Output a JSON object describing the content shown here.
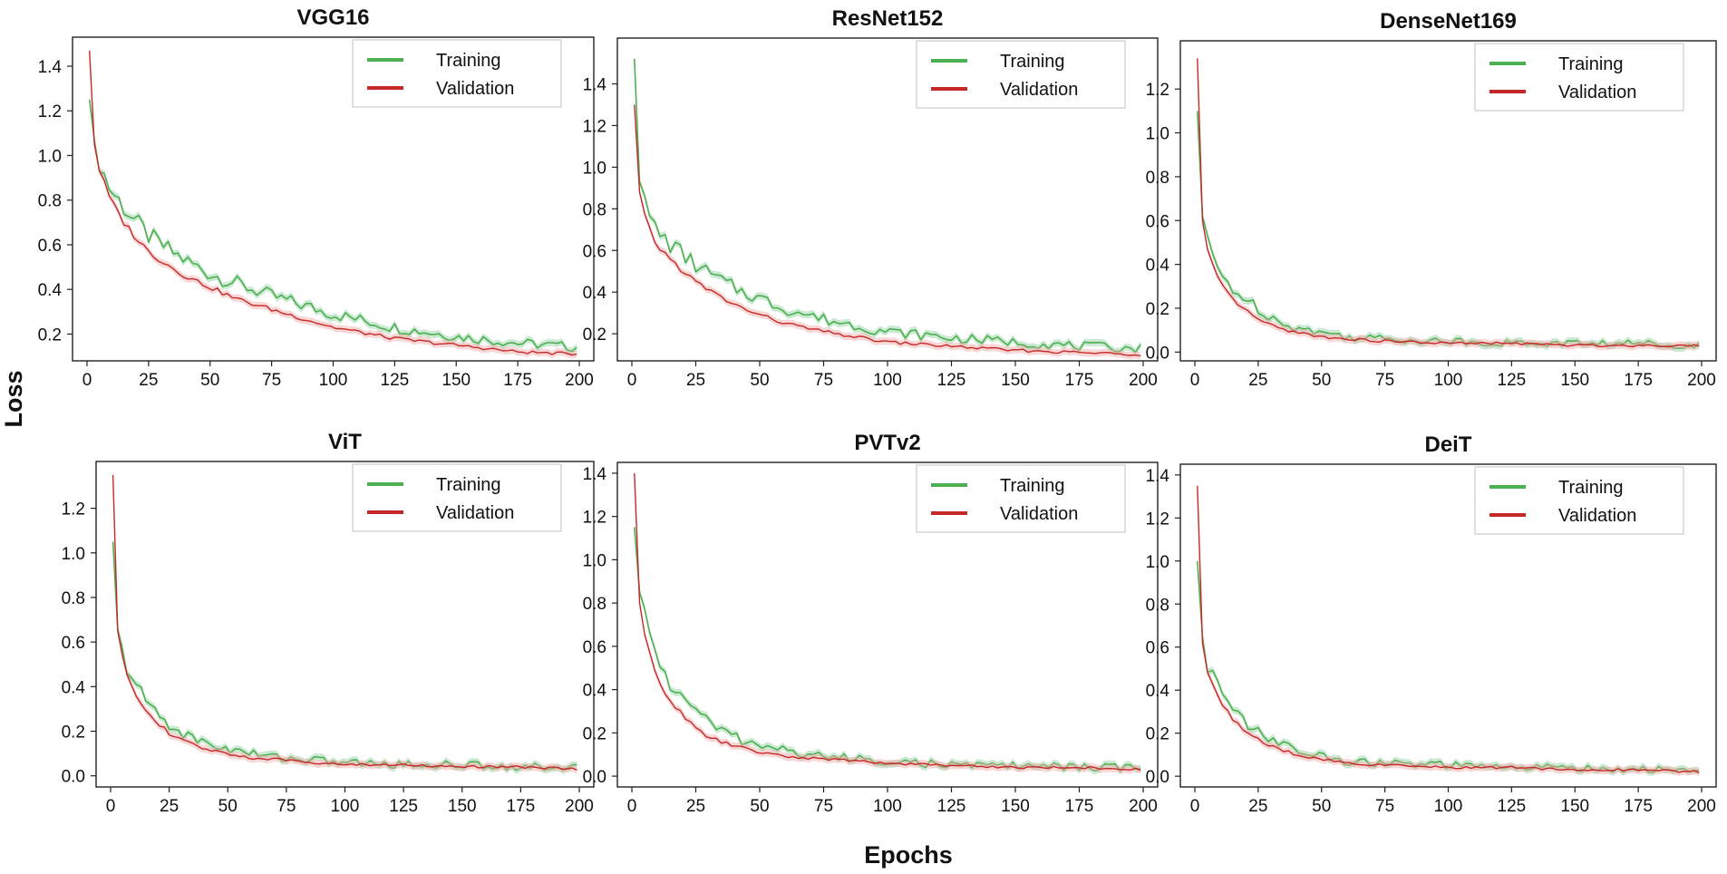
{
  "figure": {
    "xlabel": "Epochs",
    "ylabel": "Loss"
  },
  "colors": {
    "training": "#4caf50",
    "training_light": "#8fd19e",
    "validation": "#c62828",
    "validation_light": "#f4a7a7"
  },
  "chart_data": [
    {
      "type": "line",
      "title": "VGG16",
      "legend": [
        "Training",
        "Validation"
      ],
      "legend_position": "top-right",
      "xlim": [
        0,
        200
      ],
      "ylim": [
        0.08,
        1.53
      ],
      "xticks": [
        0,
        25,
        50,
        75,
        100,
        125,
        150,
        175,
        200
      ],
      "yticks": [
        0.2,
        0.4,
        0.6,
        0.8,
        1.0,
        1.2,
        1.4
      ],
      "x": [
        1,
        2,
        3,
        5,
        8,
        10,
        15,
        20,
        25,
        30,
        40,
        50,
        60,
        75,
        100,
        125,
        150,
        175,
        200
      ],
      "series": [
        {
          "name": "Training",
          "values": [
            1.25,
            1.15,
            1.07,
            0.98,
            0.88,
            0.84,
            0.77,
            0.7,
            0.64,
            0.6,
            0.53,
            0.47,
            0.43,
            0.37,
            0.29,
            0.23,
            0.19,
            0.16,
            0.14
          ]
        },
        {
          "name": "Validation",
          "values": [
            1.47,
            1.2,
            1.05,
            0.94,
            0.84,
            0.79,
            0.7,
            0.63,
            0.57,
            0.53,
            0.46,
            0.41,
            0.36,
            0.31,
            0.23,
            0.18,
            0.15,
            0.12,
            0.11
          ]
        }
      ]
    },
    {
      "type": "line",
      "title": "ResNet152",
      "legend": [
        "Training",
        "Validation"
      ],
      "legend_position": "top-right",
      "xlim": [
        0,
        200
      ],
      "ylim": [
        0.07,
        1.62
      ],
      "xticks": [
        0,
        25,
        50,
        75,
        100,
        125,
        150,
        175,
        200
      ],
      "yticks": [
        0.2,
        0.4,
        0.6,
        0.8,
        1.0,
        1.2,
        1.4
      ],
      "x": [
        1,
        2,
        3,
        5,
        8,
        10,
        15,
        20,
        25,
        30,
        40,
        50,
        60,
        75,
        100,
        125,
        150,
        175,
        200
      ],
      "series": [
        {
          "name": "Training",
          "values": [
            1.52,
            1.05,
            0.93,
            0.82,
            0.73,
            0.69,
            0.63,
            0.58,
            0.53,
            0.49,
            0.42,
            0.37,
            0.32,
            0.27,
            0.21,
            0.18,
            0.16,
            0.14,
            0.13
          ]
        },
        {
          "name": "Validation",
          "values": [
            1.3,
            1.0,
            0.88,
            0.76,
            0.67,
            0.62,
            0.56,
            0.5,
            0.45,
            0.41,
            0.34,
            0.29,
            0.25,
            0.21,
            0.16,
            0.14,
            0.12,
            0.11,
            0.1
          ]
        }
      ]
    },
    {
      "type": "line",
      "title": "DenseNet169",
      "legend": [
        "Training",
        "Validation"
      ],
      "legend_position": "top-right",
      "xlim": [
        0,
        200
      ],
      "ylim": [
        -0.04,
        1.42
      ],
      "xticks": [
        0,
        25,
        50,
        75,
        100,
        125,
        150,
        175,
        200
      ],
      "yticks": [
        0.0,
        0.2,
        0.4,
        0.6,
        0.8,
        1.0,
        1.2
      ],
      "x": [
        1,
        2,
        3,
        5,
        8,
        10,
        15,
        20,
        25,
        30,
        40,
        50,
        60,
        75,
        100,
        125,
        150,
        175,
        200
      ],
      "series": [
        {
          "name": "Training",
          "values": [
            1.1,
            0.8,
            0.62,
            0.5,
            0.4,
            0.36,
            0.29,
            0.24,
            0.2,
            0.16,
            0.11,
            0.09,
            0.07,
            0.06,
            0.05,
            0.04,
            0.04,
            0.04,
            0.03
          ]
        },
        {
          "name": "Validation",
          "values": [
            1.34,
            0.85,
            0.6,
            0.46,
            0.36,
            0.31,
            0.24,
            0.19,
            0.15,
            0.12,
            0.09,
            0.07,
            0.06,
            0.05,
            0.04,
            0.04,
            0.03,
            0.03,
            0.03
          ]
        }
      ]
    },
    {
      "type": "line",
      "title": "ViT",
      "legend": [
        "Training",
        "Validation"
      ],
      "legend_position": "top-right",
      "xlim": [
        0,
        200
      ],
      "ylim": [
        -0.05,
        1.41
      ],
      "xticks": [
        0,
        25,
        50,
        75,
        100,
        125,
        150,
        175,
        200
      ],
      "yticks": [
        0.0,
        0.2,
        0.4,
        0.6,
        0.8,
        1.0,
        1.2
      ],
      "x": [
        1,
        2,
        3,
        5,
        8,
        10,
        15,
        20,
        25,
        30,
        40,
        50,
        60,
        75,
        100,
        125,
        150,
        175,
        200
      ],
      "series": [
        {
          "name": "Training",
          "values": [
            1.05,
            0.8,
            0.66,
            0.55,
            0.46,
            0.42,
            0.34,
            0.28,
            0.23,
            0.19,
            0.15,
            0.12,
            0.1,
            0.08,
            0.06,
            0.05,
            0.05,
            0.04,
            0.04
          ]
        },
        {
          "name": "Validation",
          "values": [
            1.35,
            0.85,
            0.65,
            0.53,
            0.43,
            0.38,
            0.3,
            0.24,
            0.19,
            0.16,
            0.12,
            0.1,
            0.08,
            0.07,
            0.05,
            0.05,
            0.04,
            0.04,
            0.03
          ]
        }
      ]
    },
    {
      "type": "line",
      "title": "PVTv2",
      "legend": [
        "Training",
        "Validation"
      ],
      "legend_position": "top-right",
      "xlim": [
        0,
        200
      ],
      "ylim": [
        -0.05,
        1.45
      ],
      "xticks": [
        0,
        25,
        50,
        75,
        100,
        125,
        150,
        175,
        200
      ],
      "yticks": [
        0.0,
        0.2,
        0.4,
        0.6,
        0.8,
        1.0,
        1.2,
        1.4
      ],
      "x": [
        1,
        2,
        3,
        5,
        8,
        10,
        15,
        20,
        25,
        30,
        40,
        50,
        60,
        75,
        100,
        125,
        150,
        175,
        200
      ],
      "series": [
        {
          "name": "Training",
          "values": [
            1.15,
            0.95,
            0.85,
            0.74,
            0.62,
            0.55,
            0.42,
            0.37,
            0.3,
            0.25,
            0.18,
            0.14,
            0.12,
            0.09,
            0.07,
            0.05,
            0.05,
            0.04,
            0.04
          ]
        },
        {
          "name": "Validation",
          "values": [
            1.4,
            1.0,
            0.8,
            0.65,
            0.52,
            0.45,
            0.35,
            0.28,
            0.22,
            0.18,
            0.14,
            0.11,
            0.09,
            0.08,
            0.06,
            0.05,
            0.04,
            0.04,
            0.03
          ]
        }
      ]
    },
    {
      "type": "line",
      "title": "DeiT",
      "legend": [
        "Training",
        "Validation"
      ],
      "legend_position": "top-right",
      "xlim": [
        0,
        200
      ],
      "ylim": [
        -0.05,
        1.45
      ],
      "xticks": [
        0,
        25,
        50,
        75,
        100,
        125,
        150,
        175,
        200
      ],
      "yticks": [
        0.0,
        0.2,
        0.4,
        0.6,
        0.8,
        1.0,
        1.2,
        1.4
      ],
      "x": [
        1,
        2,
        3,
        5,
        8,
        10,
        15,
        20,
        25,
        30,
        40,
        50,
        60,
        75,
        100,
        125,
        150,
        175,
        200
      ],
      "series": [
        {
          "name": "Training",
          "values": [
            1.0,
            0.8,
            0.65,
            0.52,
            0.44,
            0.4,
            0.3,
            0.25,
            0.21,
            0.17,
            0.12,
            0.09,
            0.07,
            0.06,
            0.05,
            0.04,
            0.04,
            0.03,
            0.03
          ]
        },
        {
          "name": "Validation",
          "values": [
            1.35,
            0.85,
            0.62,
            0.48,
            0.4,
            0.35,
            0.26,
            0.21,
            0.17,
            0.14,
            0.1,
            0.08,
            0.06,
            0.05,
            0.04,
            0.04,
            0.03,
            0.03,
            0.02
          ]
        }
      ]
    }
  ]
}
